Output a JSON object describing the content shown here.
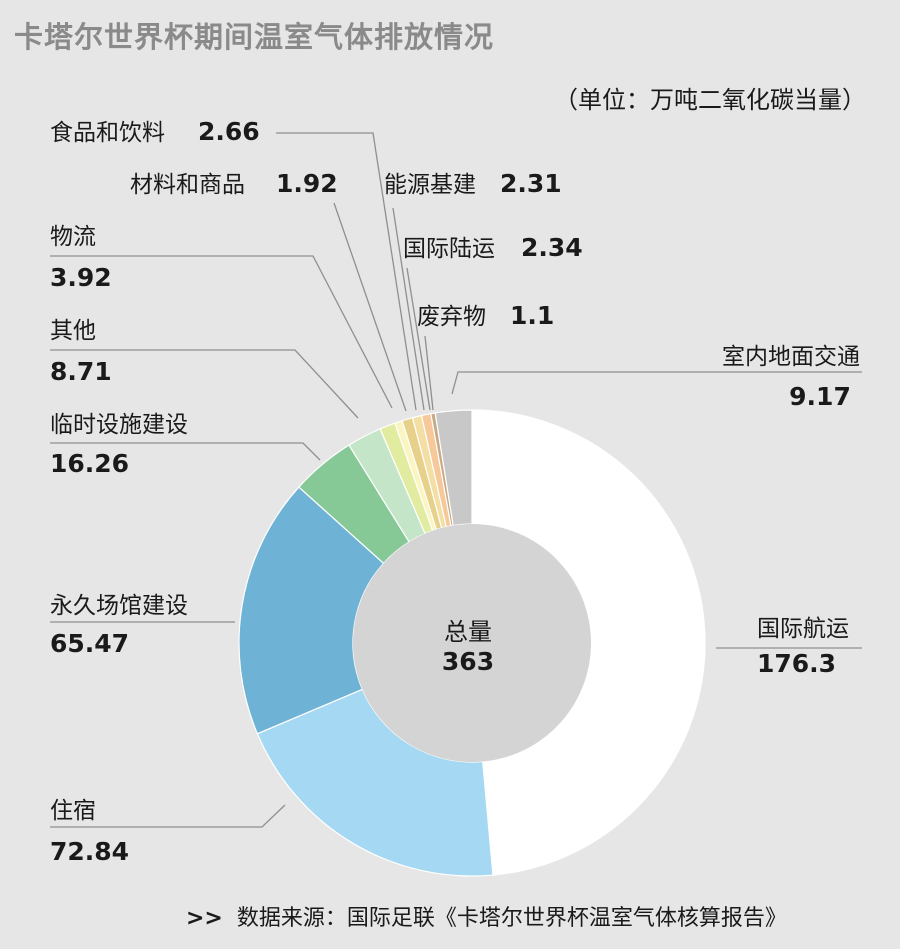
{
  "title": "卡塔尔世界杯期间温室气体排放情况",
  "unit": "（单位：万吨二氧化碳当量）",
  "source": {
    "prefix": ">>",
    "text": "数据来源：国际足联《卡塔尔世界杯温室气体核算报告》"
  },
  "center": {
    "label": "总量",
    "value": "363"
  },
  "chart_data": {
    "type": "donut",
    "total": 363,
    "segments": [
      {
        "label": "国际航运",
        "value": 176.3,
        "value_text": "176.3",
        "color": "#ffffff"
      },
      {
        "label": "住宿",
        "value": 72.84,
        "value_text": "72.84",
        "color": "#a5d8f3"
      },
      {
        "label": "永久场馆建设",
        "value": 65.47,
        "value_text": "65.47",
        "color": "#6eb3d6"
      },
      {
        "label": "临时设施建设",
        "value": 16.26,
        "value_text": "16.26",
        "color": "#86c996"
      },
      {
        "label": "其他",
        "value": 8.71,
        "value_text": "8.71",
        "color": "#c5e5c8"
      },
      {
        "label": "物流",
        "value": 3.92,
        "value_text": "3.92",
        "color": "#e2eca0"
      },
      {
        "label": "材料和商品",
        "value": 1.92,
        "value_text": "1.92",
        "color": "#fbf5c2"
      },
      {
        "label": "食品和饮料",
        "value": 2.66,
        "value_text": "2.66",
        "color": "#e6d08a"
      },
      {
        "label": "能源基建",
        "value": 2.31,
        "value_text": "2.31",
        "color": "#f3dfa3"
      },
      {
        "label": "国际陆运",
        "value": 2.34,
        "value_text": "2.34",
        "color": "#f6c89a"
      },
      {
        "label": "废弃物",
        "value": 1.1,
        "value_text": "1.1",
        "color": "#c8aa86"
      },
      {
        "label": "室内地面交通",
        "value": 9.17,
        "value_text": "9.17",
        "color": "#c8c8c8"
      }
    ]
  }
}
